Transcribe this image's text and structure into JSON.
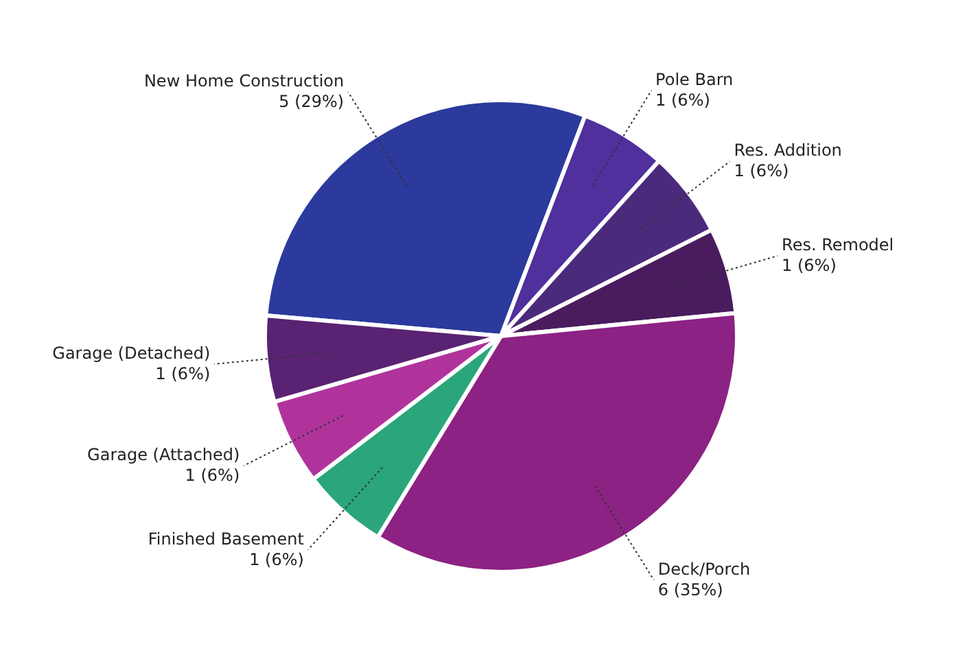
{
  "chart_data": {
    "type": "pie",
    "categories": [
      "New Home Construction",
      "Pole Barn",
      "Res. Addition",
      "Res. Remodel",
      "Deck/Porch",
      "Finished Basement",
      "Garage (Attached)",
      "Garage (Detached)"
    ],
    "values": [
      5,
      1,
      1,
      1,
      6,
      1,
      1,
      1
    ],
    "value_labels": [
      "5  (29%)",
      "1  (6%)",
      "1  (6%)",
      "1  (6%)",
      "6  (35%)",
      "1  (6%)",
      "1  (6%)",
      "1  (6%)"
    ],
    "colors": [
      "#2b3a9c",
      "#4f309c",
      "#4b2a7c",
      "#4a1c5e",
      "#8c2283",
      "#2aa67a",
      "#b0339c",
      "#5a2272"
    ]
  }
}
